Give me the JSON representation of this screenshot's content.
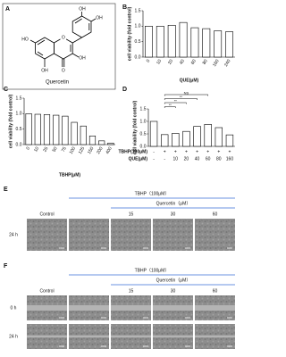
{
  "panel_labels": [
    "A",
    "B",
    "C",
    "D"
  ],
  "structure": {
    "name": "Quercetin",
    "atoms": [
      "HO",
      "OH",
      "O",
      "OH",
      "OH",
      "OH",
      "O"
    ]
  },
  "chart_data": [
    {
      "type": "bar",
      "x_label": "QUE(μM)",
      "y_label": "cell viability (fold control)",
      "categories": [
        "0",
        "10",
        "20",
        "40",
        "60",
        "80",
        "160",
        "240"
      ],
      "values": [
        1.0,
        1.0,
        1.03,
        1.12,
        0.95,
        0.92,
        0.85,
        0.82
      ],
      "color": "#ffffff",
      "ylim": [
        0,
        1.5
      ],
      "yticks": [
        {
          "value": 0,
          "label": "0.0"
        },
        {
          "value": 0.5,
          "label": "0.5"
        },
        {
          "value": 1,
          "label": "1.0"
        },
        {
          "value": 1.5,
          "label": "1.5"
        }
      ]
    },
    {
      "type": "bar",
      "x_label": "TBHP(μM)",
      "y_label": "cell viability (fold control)",
      "categories": [
        "0",
        "10",
        "25",
        "50",
        "75",
        "100",
        "125",
        "150",
        "200",
        "400"
      ],
      "values": [
        1.0,
        0.98,
        0.97,
        0.95,
        0.92,
        0.72,
        0.6,
        0.28,
        0.12,
        0.05
      ],
      "color": "#ffffff",
      "ylim": [
        0,
        1.5
      ],
      "yticks": [
        {
          "value": 0,
          "label": "0.0"
        },
        {
          "value": 0.5,
          "label": "0.5"
        },
        {
          "value": 1,
          "label": "1.0"
        },
        {
          "value": 1.5,
          "label": "1.5"
        }
      ]
    },
    {
      "type": "bar",
      "x_label": "QUE(μM)",
      "y_label": "cell viability (fold control)",
      "tbhp_row": {
        "name": "TBHP(100μM)",
        "labels": [
          "-",
          "+",
          "+",
          "+",
          "+",
          "+",
          "+",
          "+"
        ]
      },
      "categories": [
        "-",
        "-",
        "10",
        "20",
        "40",
        "60",
        "80",
        "160"
      ],
      "values": [
        1.0,
        0.47,
        0.52,
        0.6,
        0.8,
        0.88,
        0.75,
        0.46
      ],
      "color": "#ffffff",
      "annotations": [
        "NS",
        "**",
        "**",
        "**"
      ],
      "ylim": [
        0,
        1.5
      ],
      "yticks": [
        {
          "value": 0,
          "label": "0.0"
        },
        {
          "value": 0.5,
          "label": "0.5"
        },
        {
          "value": 1,
          "label": "1.0"
        },
        {
          "value": 1.5,
          "label": "1.5"
        }
      ]
    }
  ],
  "micrographs": [
    {
      "label": "E",
      "tbhp": "TBHP（100μM）",
      "quercetin": "Quercetin（μM）",
      "columns": [
        "Control",
        "15",
        "30",
        "60"
      ],
      "rows": [
        "24 h"
      ]
    },
    {
      "label": "F",
      "tbhp": "TBHP（100μM）",
      "quercetin": "Quercetin（μM）",
      "columns": [
        "Control",
        "15",
        "30",
        "60"
      ],
      "rows": [
        "0 h",
        "24 h"
      ]
    }
  ]
}
